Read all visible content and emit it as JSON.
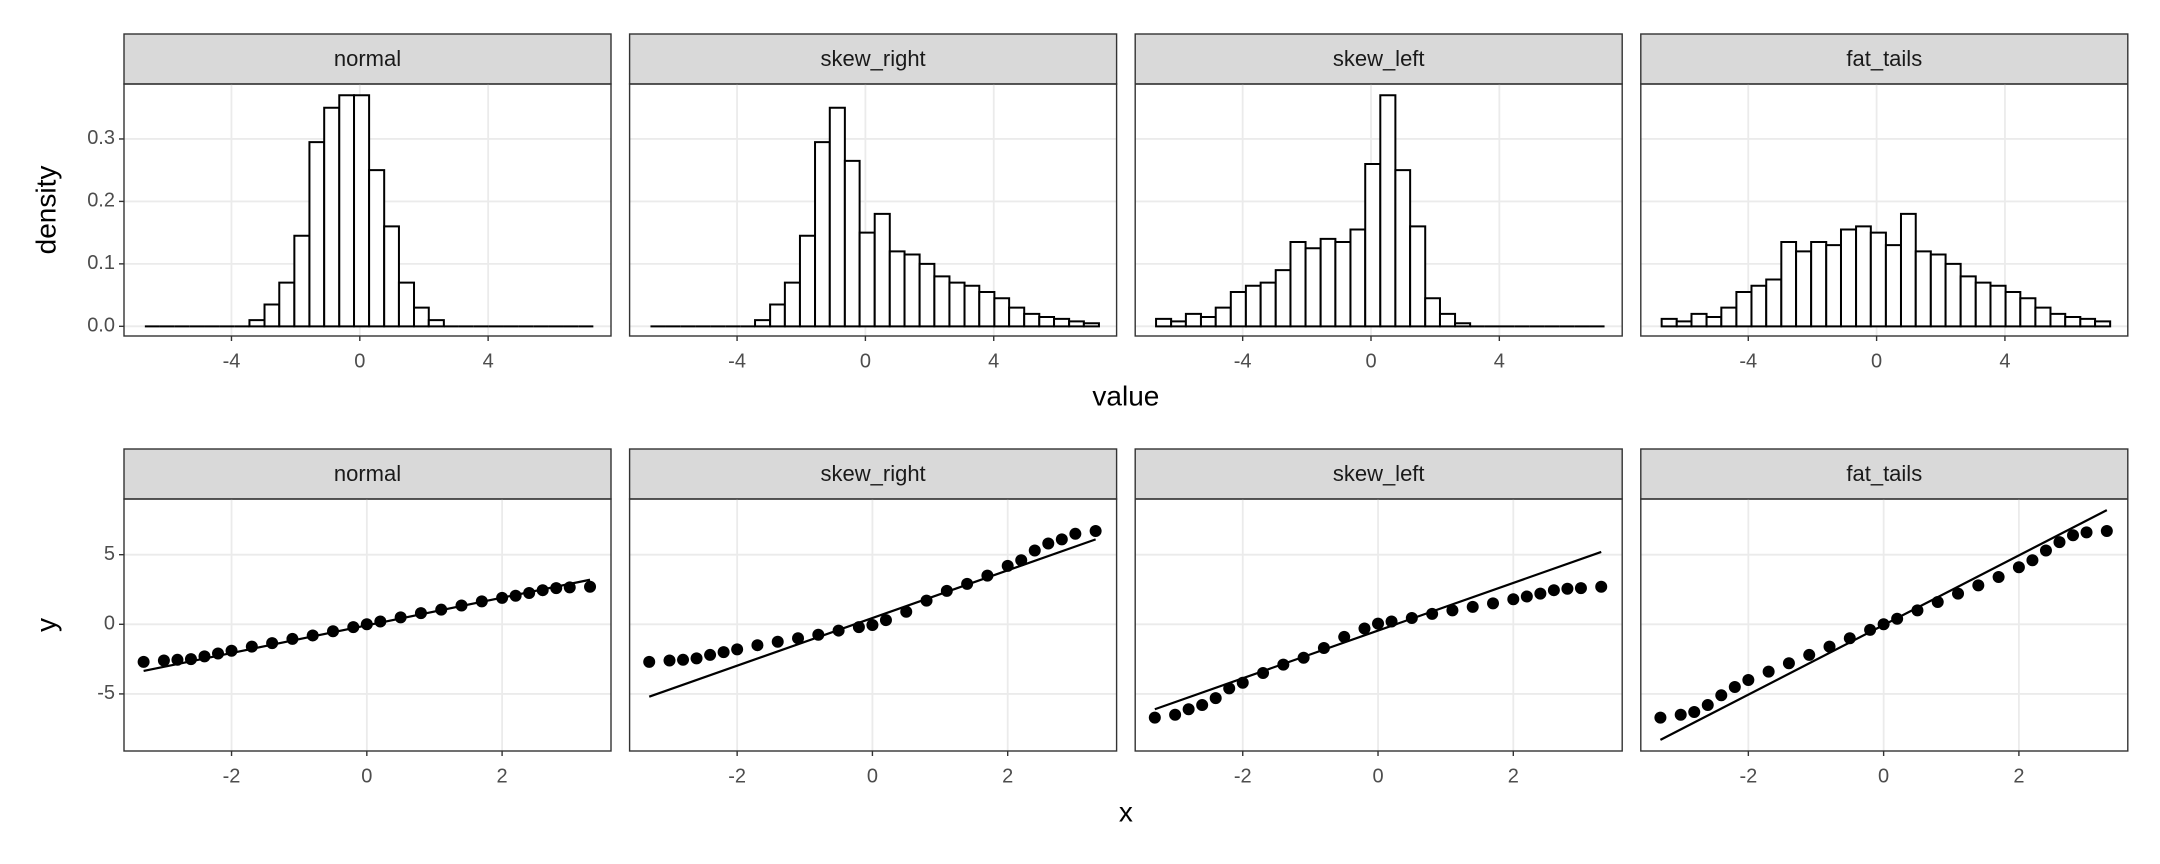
{
  "chart_data": [
    {
      "type": "histogram",
      "title": "normal",
      "xlabel": "value",
      "ylabel": "density",
      "bins": [
        -6.7,
        -6.23,
        -5.77,
        -5.3,
        -4.84,
        -4.37,
        -3.9,
        -3.44,
        -2.97,
        -2.51,
        -2.04,
        -1.57,
        -1.11,
        -0.64,
        -0.18,
        0.29,
        0.76,
        1.22,
        1.69,
        2.15,
        2.62,
        3.09,
        3.55,
        4.02,
        4.48,
        4.95,
        5.42,
        5.88,
        6.35,
        6.81,
        7.28
      ],
      "values": [
        0,
        0,
        0,
        0,
        0,
        0,
        0,
        0.01,
        0.035,
        0.07,
        0.145,
        0.295,
        0.35,
        0.37,
        0.37,
        0.25,
        0.16,
        0.07,
        0.03,
        0.01,
        0,
        0,
        0,
        0,
        0,
        0,
        0,
        0,
        0,
        0
      ],
      "xlim": [
        -7.35,
        7.83
      ],
      "ylim": [
        -0.0155,
        0.388
      ],
      "xticks": [
        -4,
        0,
        4
      ],
      "yticks": [
        {
          "value": 0,
          "label": "0.0"
        },
        0.1,
        0.2,
        0.3
      ],
      "grid": true,
      "color": "#ffffff",
      "edge_color": "#000000"
    },
    {
      "type": "histogram",
      "title": "skew_right",
      "bins": [
        -6.7,
        -6.23,
        -5.77,
        -5.3,
        -4.84,
        -4.37,
        -3.9,
        -3.44,
        -2.97,
        -2.51,
        -2.04,
        -1.57,
        -1.11,
        -0.64,
        -0.18,
        0.29,
        0.76,
        1.22,
        1.69,
        2.15,
        2.62,
        3.09,
        3.55,
        4.02,
        4.48,
        4.95,
        5.42,
        5.88,
        6.35,
        6.81,
        7.28
      ],
      "values": [
        0,
        0,
        0,
        0,
        0,
        0,
        0,
        0.01,
        0.035,
        0.07,
        0.145,
        0.295,
        0.35,
        0.265,
        0.15,
        0.18,
        0.12,
        0.115,
        0.1,
        0.08,
        0.07,
        0.065,
        0.055,
        0.045,
        0.03,
        0.02,
        0.015,
        0.012,
        0.008,
        0.005
      ],
      "xlim": [
        -7.35,
        7.83
      ],
      "ylim": [
        -0.0155,
        0.388
      ],
      "xticks": [
        -4,
        0,
        4
      ],
      "yticks": [
        {
          "value": 0,
          "label": "0.0"
        },
        0.1,
        0.2,
        0.3
      ],
      "grid": true,
      "color": "#ffffff",
      "edge_color": "#000000"
    },
    {
      "type": "histogram",
      "title": "skew_left",
      "bins": [
        -6.7,
        -6.23,
        -5.77,
        -5.3,
        -4.84,
        -4.37,
        -3.9,
        -3.44,
        -2.97,
        -2.51,
        -2.04,
        -1.57,
        -1.11,
        -0.64,
        -0.18,
        0.29,
        0.76,
        1.22,
        1.69,
        2.15,
        2.62,
        3.09,
        3.55,
        4.02,
        4.48,
        4.95,
        5.42,
        5.88,
        6.35,
        6.81,
        7.28
      ],
      "values": [
        0.012,
        0.008,
        0.02,
        0.015,
        0.03,
        0.055,
        0.065,
        0.07,
        0.09,
        0.135,
        0.125,
        0.14,
        0.135,
        0.155,
        0.26,
        0.37,
        0.25,
        0.16,
        0.045,
        0.02,
        0.005,
        0,
        0,
        0,
        0,
        0,
        0,
        0,
        0,
        0
      ],
      "xlim": [
        -7.35,
        7.83
      ],
      "ylim": [
        -0.0155,
        0.388
      ],
      "xticks": [
        -4,
        0,
        4
      ],
      "yticks": [
        {
          "value": 0,
          "label": "0.0"
        },
        0.1,
        0.2,
        0.3
      ],
      "grid": true,
      "color": "#ffffff",
      "edge_color": "#000000"
    },
    {
      "type": "histogram",
      "title": "fat_tails",
      "bins": [
        -6.7,
        -6.23,
        -5.77,
        -5.3,
        -4.84,
        -4.37,
        -3.9,
        -3.44,
        -2.97,
        -2.51,
        -2.04,
        -1.57,
        -1.11,
        -0.64,
        -0.18,
        0.29,
        0.76,
        1.22,
        1.69,
        2.15,
        2.62,
        3.09,
        3.55,
        4.02,
        4.48,
        4.95,
        5.42,
        5.88,
        6.35,
        6.81,
        7.28
      ],
      "values": [
        0.012,
        0.008,
        0.02,
        0.015,
        0.03,
        0.055,
        0.065,
        0.075,
        0.135,
        0.12,
        0.135,
        0.13,
        0.155,
        0.16,
        0.15,
        0.13,
        0.18,
        0.12,
        0.115,
        0.1,
        0.08,
        0.07,
        0.065,
        0.055,
        0.045,
        0.03,
        0.02,
        0.015,
        0.012,
        0.008
      ],
      "xlim": [
        -7.35,
        7.83
      ],
      "ylim": [
        -0.0155,
        0.388
      ],
      "xticks": [
        -4,
        0,
        4
      ],
      "yticks": [
        {
          "value": 0,
          "label": "0.0"
        },
        0.1,
        0.2,
        0.3
      ],
      "grid": true,
      "color": "#ffffff",
      "edge_color": "#000000"
    },
    {
      "type": "scatter",
      "title": "normal",
      "xlabel": "x",
      "ylabel": "y",
      "x": [
        -3.3,
        -3.0,
        -2.8,
        -2.6,
        -2.4,
        -2.2,
        -2.0,
        -1.7,
        -1.4,
        -1.1,
        -0.8,
        -0.5,
        -0.2,
        0,
        0.2,
        0.5,
        0.8,
        1.1,
        1.4,
        1.7,
        2.0,
        2.2,
        2.4,
        2.6,
        2.8,
        3.0,
        3.3
      ],
      "values": [
        -2.7,
        -2.6,
        -2.55,
        -2.5,
        -2.3,
        -2.1,
        -1.9,
        -1.6,
        -1.35,
        -1.05,
        -0.8,
        -0.5,
        -0.2,
        0,
        0.2,
        0.5,
        0.8,
        1.05,
        1.35,
        1.65,
        1.9,
        2.05,
        2.25,
        2.45,
        2.6,
        2.65,
        2.7
      ],
      "ref_line": {
        "x": [
          -3.3,
          3.3
        ],
        "y": [
          -3.35,
          3.2
        ]
      },
      "xlim": [
        -3.59,
        3.61
      ],
      "ylim": [
        -9.1,
        9.0
      ],
      "xticks": [
        -2,
        0,
        2
      ],
      "yticks": [
        -5,
        0,
        5
      ],
      "grid": true,
      "color": "#000000"
    },
    {
      "type": "scatter",
      "title": "skew_right",
      "x": [
        -3.3,
        -3.0,
        -2.8,
        -2.6,
        -2.4,
        -2.2,
        -2.0,
        -1.7,
        -1.4,
        -1.1,
        -0.8,
        -0.5,
        -0.2,
        0,
        0.2,
        0.5,
        0.8,
        1.1,
        1.4,
        1.7,
        2.0,
        2.2,
        2.4,
        2.6,
        2.8,
        3.0,
        3.3
      ],
      "values": [
        -2.7,
        -2.6,
        -2.55,
        -2.45,
        -2.2,
        -2.0,
        -1.8,
        -1.5,
        -1.25,
        -1.0,
        -0.75,
        -0.45,
        -0.2,
        -0.05,
        0.3,
        0.9,
        1.7,
        2.4,
        2.9,
        3.5,
        4.2,
        4.6,
        5.3,
        5.8,
        6.1,
        6.5,
        6.7
      ],
      "ref_line": {
        "x": [
          -3.3,
          3.3
        ],
        "y": [
          -5.2,
          6.1
        ]
      },
      "xlim": [
        -3.59,
        3.61
      ],
      "ylim": [
        -9.1,
        9.0
      ],
      "xticks": [
        -2,
        0,
        2
      ],
      "yticks": [
        -5,
        0,
        5
      ],
      "grid": true,
      "color": "#000000"
    },
    {
      "type": "scatter",
      "title": "skew_left",
      "x": [
        -3.3,
        -3.0,
        -2.8,
        -2.6,
        -2.4,
        -2.2,
        -2.0,
        -1.7,
        -1.4,
        -1.1,
        -0.8,
        -0.5,
        -0.2,
        0,
        0.2,
        0.5,
        0.8,
        1.1,
        1.4,
        1.7,
        2.0,
        2.2,
        2.4,
        2.6,
        2.8,
        3.0,
        3.3
      ],
      "values": [
        -6.7,
        -6.5,
        -6.1,
        -5.8,
        -5.3,
        -4.6,
        -4.2,
        -3.5,
        -2.9,
        -2.4,
        -1.7,
        -0.9,
        -0.3,
        0.05,
        0.2,
        0.45,
        0.75,
        1.0,
        1.25,
        1.5,
        1.8,
        2.0,
        2.2,
        2.45,
        2.55,
        2.6,
        2.7
      ],
      "ref_line": {
        "x": [
          -3.3,
          3.3
        ],
        "y": [
          -6.1,
          5.2
        ]
      },
      "xlim": [
        -3.59,
        3.61
      ],
      "ylim": [
        -9.1,
        9.0
      ],
      "xticks": [
        -2,
        0,
        2
      ],
      "yticks": [
        -5,
        0,
        5
      ],
      "grid": true,
      "color": "#000000"
    },
    {
      "type": "scatter",
      "title": "fat_tails",
      "x": [
        -3.3,
        -3.0,
        -2.8,
        -2.6,
        -2.4,
        -2.2,
        -2.0,
        -1.7,
        -1.4,
        -1.1,
        -0.8,
        -0.5,
        -0.2,
        0,
        0.2,
        0.5,
        0.8,
        1.1,
        1.4,
        1.7,
        2.0,
        2.2,
        2.4,
        2.6,
        2.8,
        3.0,
        3.3
      ],
      "values": [
        -6.7,
        -6.5,
        -6.3,
        -5.8,
        -5.1,
        -4.5,
        -4.0,
        -3.4,
        -2.8,
        -2.2,
        -1.6,
        -1.0,
        -0.4,
        0,
        0.4,
        1.0,
        1.6,
        2.2,
        2.8,
        3.4,
        4.1,
        4.6,
        5.3,
        5.9,
        6.4,
        6.6,
        6.7
      ],
      "ref_line": {
        "x": [
          -3.3,
          3.3
        ],
        "y": [
          -8.3,
          8.2
        ]
      },
      "xlim": [
        -3.59,
        3.61
      ],
      "ylim": [
        -9.1,
        9.0
      ],
      "xticks": [
        -2,
        0,
        2
      ],
      "yticks": [
        -5,
        0,
        5
      ],
      "grid": true,
      "color": "#000000"
    }
  ]
}
